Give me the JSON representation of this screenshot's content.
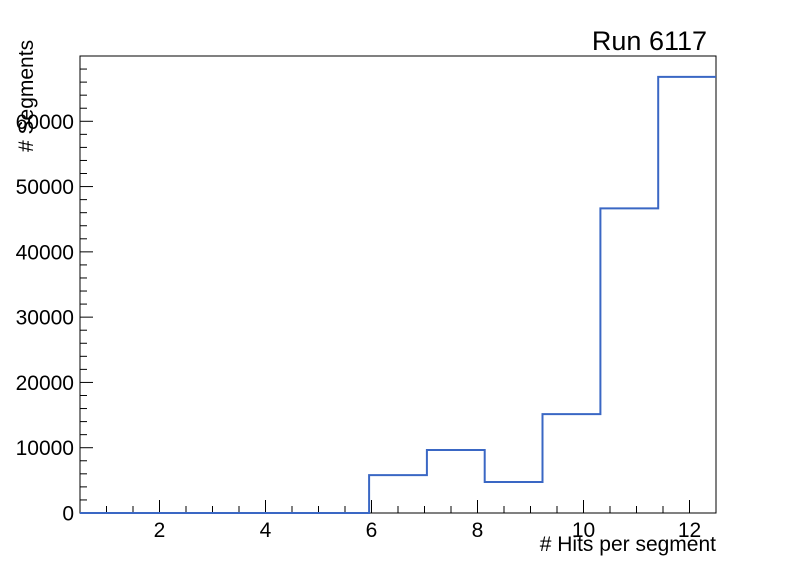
{
  "window": {
    "title": "Run 6117"
  },
  "chart_data": {
    "type": "histogram-step",
    "title": "Run 6117",
    "xlabel": "# Hits per segment",
    "ylabel": "# Segments",
    "xlim": [
      0.5,
      12.5
    ],
    "ylim": [
      0,
      70000
    ],
    "x_major_ticks": [
      2,
      4,
      6,
      8,
      10,
      12
    ],
    "x_major_tick_labels": [
      "2",
      "4",
      "6",
      "8",
      "10",
      "12"
    ],
    "x_minor_tick_step": 0.5,
    "y_major_ticks": [
      0,
      10000,
      20000,
      30000,
      40000,
      50000,
      60000
    ],
    "y_major_tick_labels": [
      "0",
      "10000",
      "20000",
      "30000",
      "40000",
      "50000",
      "60000"
    ],
    "y_minor_tick_step": 2000,
    "bin_edges": [
      0.5,
      1.591,
      2.682,
      3.773,
      4.864,
      5.955,
      7.045,
      8.136,
      9.227,
      10.318,
      11.409,
      12.5
    ],
    "counts": [
      0,
      0,
      0,
      0,
      0,
      5800,
      9650,
      4750,
      15150,
      46650,
      66800
    ],
    "legend": null,
    "grid": "off",
    "line_color": "#3a67c4",
    "axis_color": "#000000",
    "background_color": "#ffffff"
  }
}
